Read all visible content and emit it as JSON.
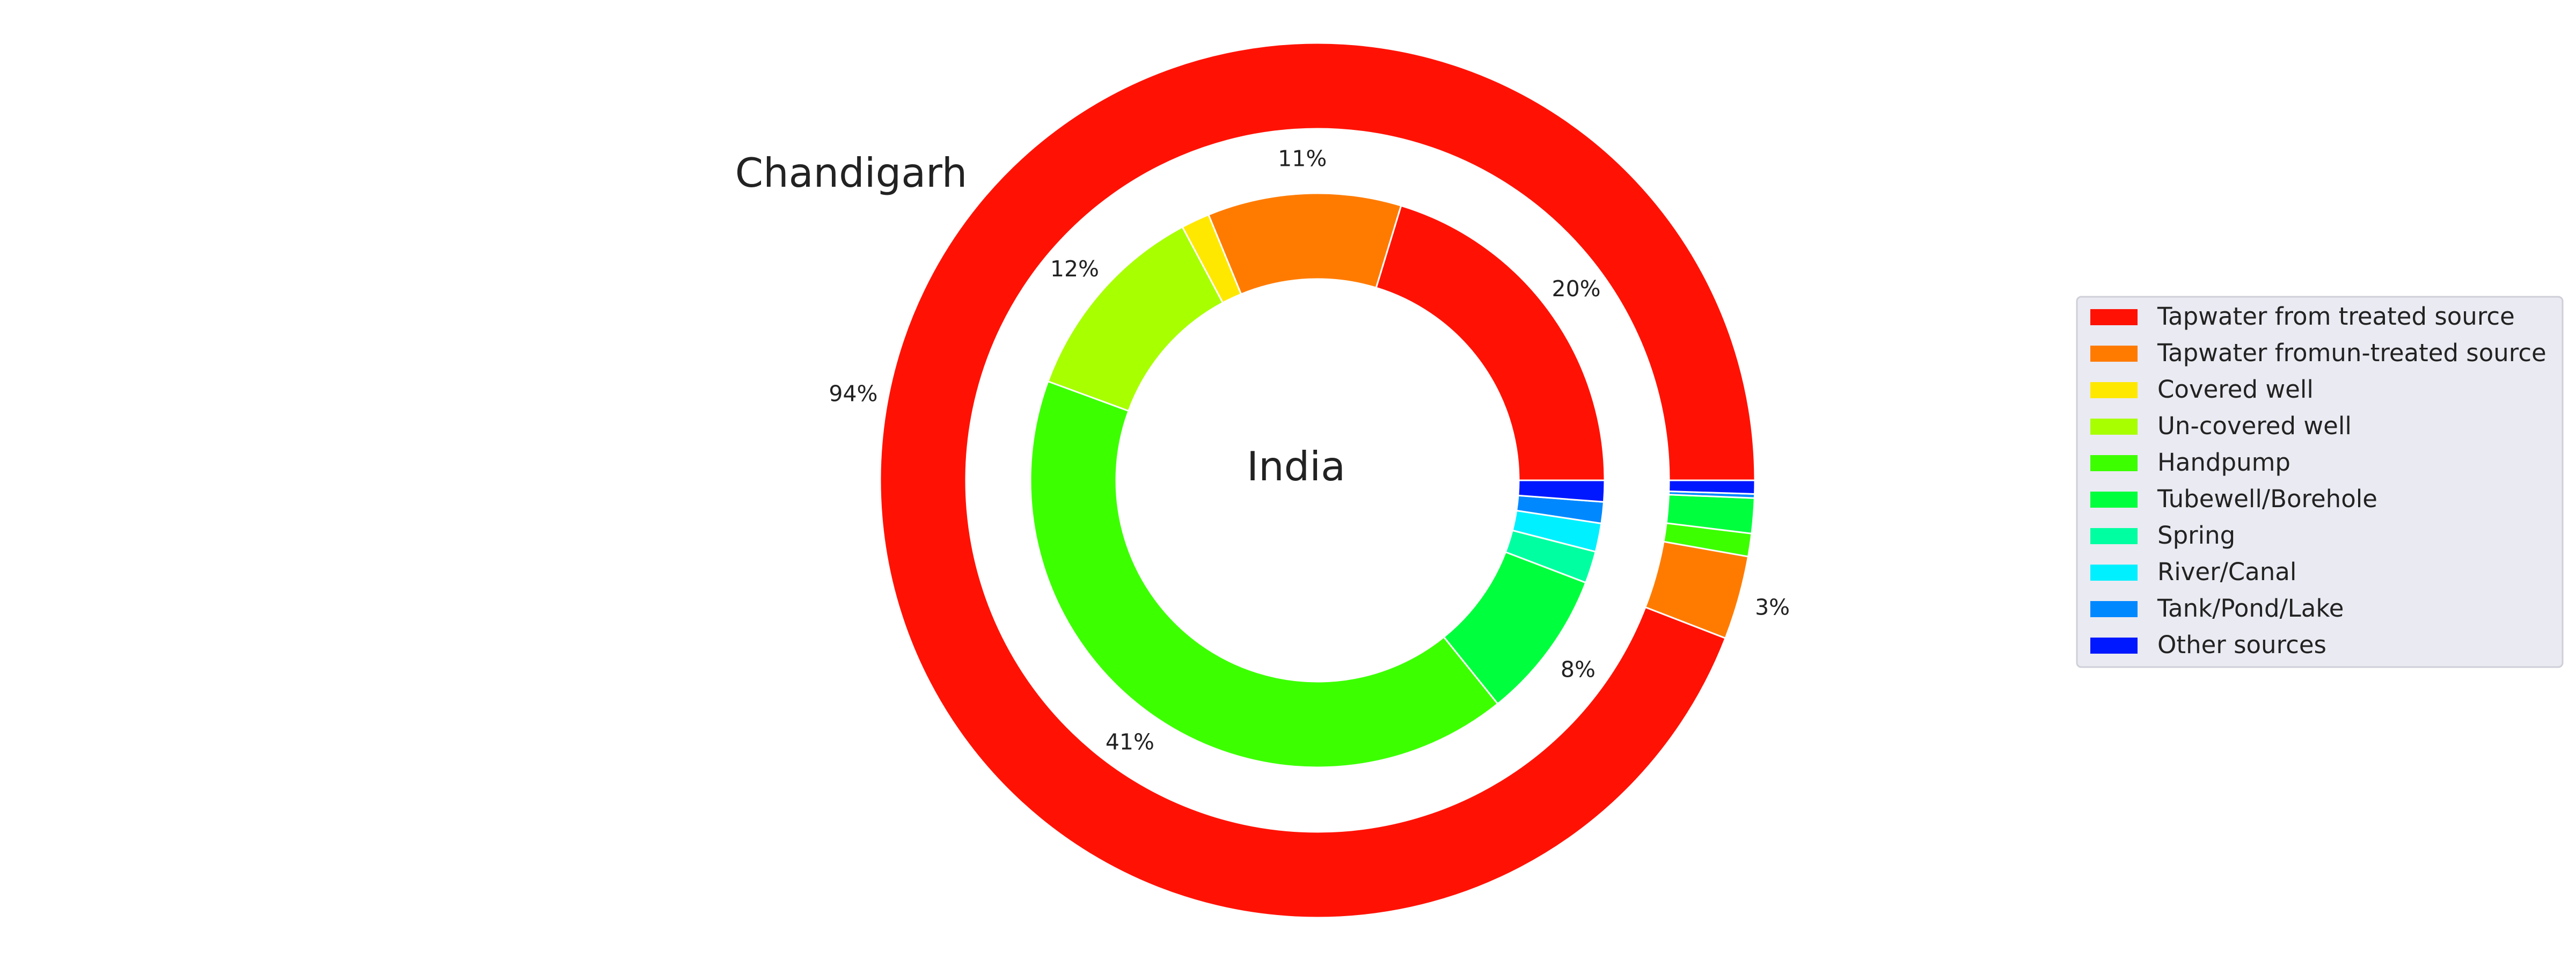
{
  "chart_data": {
    "type": "pie",
    "variant": "nested-donut",
    "categories": [
      "Tapwater from treated source",
      "Tapwater fromun-treated source",
      "Covered well",
      "Un-covered well",
      "Handpump",
      "Tubewell/Borehole",
      "Spring",
      "River/Canal",
      "Tank/Pond/Lake",
      " Other sources"
    ],
    "colors": [
      "#ff1204",
      "#ff7b00",
      "#ffe800",
      "#a8ff00",
      "#3cff00",
      "#00ff3c",
      "#00ffa0",
      "#00f0ff",
      "#0088ff",
      "#0018ff"
    ],
    "series": [
      {
        "name": "Chandigarh",
        "ring": "outer",
        "values": [
          94.5,
          3.1,
          0.0,
          0.0,
          0.85,
          1.3,
          0.0,
          0.0,
          0.15,
          0.5
        ],
        "labels": [
          "94%",
          "3%",
          "",
          "",
          "",
          "",
          "",
          "",
          "",
          ""
        ]
      },
      {
        "name": "India",
        "ring": "inner",
        "values": [
          20.3,
          10.9,
          1.6,
          11.6,
          41.4,
          8.4,
          1.8,
          1.6,
          1.2,
          1.2
        ],
        "labels": [
          "20%",
          "11%",
          "",
          "12%",
          "41%",
          "8%",
          "",
          "",
          "",
          ""
        ]
      }
    ],
    "legend_position": "right"
  }
}
